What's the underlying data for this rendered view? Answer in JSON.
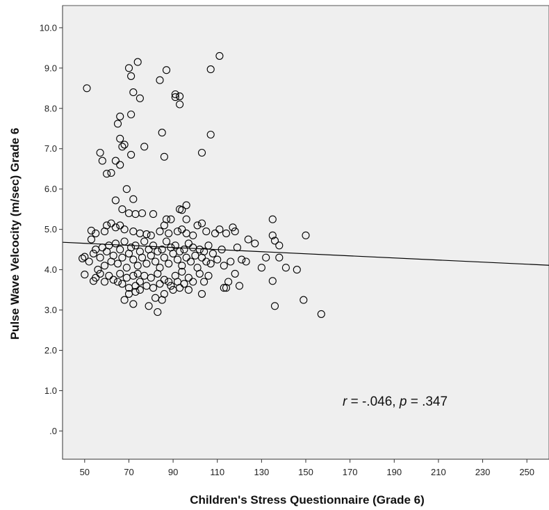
{
  "chart_data": {
    "type": "scatter",
    "title": "",
    "xlabel": "Children's Stress Questionnaire (Grade 6)",
    "ylabel": "Pulse Wave Velcocity (m/sec) Grade 6",
    "xlim": [
      40,
      260
    ],
    "ylim": [
      -0.7,
      10.55
    ],
    "xticks": [
      50,
      70,
      90,
      110,
      130,
      150,
      170,
      190,
      210,
      230,
      250
    ],
    "xtick_labels": [
      "50",
      "70",
      "90",
      "110",
      "130",
      "150",
      "170",
      "190",
      "210",
      "230",
      "250"
    ],
    "yticks": [
      0,
      1,
      2,
      3,
      4,
      5,
      6,
      7,
      8,
      9,
      10
    ],
    "ytick_labels": [
      ".0",
      "1.0",
      "2.0",
      "3.0",
      "4.0",
      "5.0",
      "6.0",
      "7.0",
      "8.0",
      "9.0",
      "10.0"
    ],
    "grid": false,
    "annotation": {
      "r_label": "r",
      "r_value": " = -.046, ",
      "p_label": "p",
      "p_value": " = .347"
    },
    "fit_line": {
      "x": [
        40,
        260
      ],
      "y": [
        4.68,
        4.11
      ]
    },
    "colors": {
      "plot_background": "#efefef",
      "marker_edge": "#000000",
      "fit_line": "#000000"
    },
    "points": [
      [
        51,
        8.5
      ],
      [
        70,
        9.0
      ],
      [
        74,
        9.15
      ],
      [
        87,
        8.95
      ],
      [
        107,
        8.97
      ],
      [
        111,
        9.3
      ],
      [
        71,
        8.8
      ],
      [
        72,
        8.4
      ],
      [
        75,
        8.25
      ],
      [
        84,
        8.7
      ],
      [
        91,
        8.35
      ],
      [
        91,
        8.28
      ],
      [
        93,
        8.3
      ],
      [
        93,
        8.1
      ],
      [
        66,
        7.8
      ],
      [
        71,
        7.85
      ],
      [
        65,
        7.62
      ],
      [
        85,
        7.4
      ],
      [
        107,
        7.35
      ],
      [
        57,
        6.9
      ],
      [
        58,
        6.7
      ],
      [
        66,
        7.25
      ],
      [
        67,
        7.05
      ],
      [
        68,
        7.1
      ],
      [
        71,
        6.85
      ],
      [
        77,
        7.05
      ],
      [
        86,
        6.8
      ],
      [
        103,
        6.9
      ],
      [
        64,
        6.7
      ],
      [
        66,
        6.6
      ],
      [
        60,
        6.38
      ],
      [
        62,
        6.4
      ],
      [
        69,
        6.0
      ],
      [
        64,
        5.72
      ],
      [
        72,
        5.75
      ],
      [
        96,
        5.6
      ],
      [
        93,
        5.5
      ],
      [
        94,
        5.48
      ],
      [
        67,
        5.5
      ],
      [
        70,
        5.4
      ],
      [
        73,
        5.38
      ],
      [
        81,
        5.38
      ],
      [
        76,
        5.4
      ],
      [
        87,
        5.25
      ],
      [
        89,
        5.25
      ],
      [
        96,
        5.25
      ],
      [
        135,
        5.25
      ],
      [
        53,
        4.97
      ],
      [
        55,
        4.9
      ],
      [
        59,
        4.95
      ],
      [
        60,
        5.1
      ],
      [
        62,
        5.15
      ],
      [
        64,
        5.05
      ],
      [
        66,
        5.1
      ],
      [
        68,
        5.0
      ],
      [
        72,
        4.95
      ],
      [
        75,
        4.9
      ],
      [
        78,
        4.88
      ],
      [
        80,
        4.85
      ],
      [
        84,
        4.95
      ],
      [
        86,
        5.1
      ],
      [
        88,
        4.9
      ],
      [
        92,
        4.95
      ],
      [
        94,
        5.0
      ],
      [
        96,
        4.9
      ],
      [
        99,
        4.85
      ],
      [
        101,
        5.1
      ],
      [
        103,
        5.15
      ],
      [
        105,
        4.95
      ],
      [
        109,
        4.9
      ],
      [
        111,
        5.0
      ],
      [
        114,
        4.9
      ],
      [
        117,
        5.05
      ],
      [
        118,
        4.95
      ],
      [
        124,
        4.75
      ],
      [
        127,
        4.65
      ],
      [
        135,
        4.85
      ],
      [
        136,
        4.72
      ],
      [
        138,
        4.6
      ],
      [
        150,
        4.85
      ],
      [
        49,
        4.28
      ],
      [
        50,
        4.32
      ],
      [
        52,
        4.2
      ],
      [
        53,
        4.75
      ],
      [
        54,
        4.4
      ],
      [
        55,
        4.5
      ],
      [
        56,
        4.0
      ],
      [
        57,
        4.3
      ],
      [
        58,
        4.55
      ],
      [
        59,
        4.1
      ],
      [
        60,
        4.45
      ],
      [
        61,
        4.6
      ],
      [
        62,
        4.2
      ],
      [
        63,
        4.35
      ],
      [
        64,
        4.65
      ],
      [
        65,
        4.15
      ],
      [
        66,
        4.5
      ],
      [
        67,
        4.3
      ],
      [
        68,
        4.7
      ],
      [
        69,
        4.05
      ],
      [
        70,
        4.4
      ],
      [
        71,
        4.55
      ],
      [
        72,
        4.25
      ],
      [
        73,
        4.6
      ],
      [
        74,
        4.1
      ],
      [
        75,
        4.45
      ],
      [
        76,
        4.3
      ],
      [
        77,
        4.7
      ],
      [
        78,
        4.15
      ],
      [
        79,
        4.5
      ],
      [
        80,
        4.35
      ],
      [
        81,
        4.6
      ],
      [
        82,
        4.2
      ],
      [
        83,
        4.45
      ],
      [
        84,
        4.05
      ],
      [
        85,
        4.5
      ],
      [
        86,
        4.3
      ],
      [
        87,
        4.7
      ],
      [
        88,
        4.15
      ],
      [
        89,
        4.55
      ],
      [
        90,
        4.4
      ],
      [
        91,
        4.6
      ],
      [
        92,
        4.25
      ],
      [
        93,
        4.45
      ],
      [
        94,
        4.1
      ],
      [
        95,
        4.5
      ],
      [
        96,
        4.3
      ],
      [
        97,
        4.65
      ],
      [
        98,
        4.2
      ],
      [
        99,
        4.55
      ],
      [
        100,
        4.35
      ],
      [
        101,
        4.05
      ],
      [
        102,
        4.5
      ],
      [
        103,
        4.3
      ],
      [
        104,
        4.45
      ],
      [
        105,
        4.2
      ],
      [
        106,
        4.6
      ],
      [
        107,
        4.15
      ],
      [
        108,
        4.4
      ],
      [
        110,
        4.25
      ],
      [
        112,
        4.5
      ],
      [
        113,
        4.1
      ],
      [
        116,
        4.2
      ],
      [
        119,
        4.55
      ],
      [
        121,
        4.25
      ],
      [
        123,
        4.2
      ],
      [
        130,
        4.05
      ],
      [
        132,
        4.3
      ],
      [
        138,
        4.3
      ],
      [
        141,
        4.05
      ],
      [
        146,
        4.0
      ],
      [
        50,
        3.88
      ],
      [
        54,
        3.72
      ],
      [
        55,
        3.8
      ],
      [
        57,
        3.9
      ],
      [
        59,
        3.7
      ],
      [
        61,
        3.85
      ],
      [
        63,
        3.75
      ],
      [
        65,
        3.7
      ],
      [
        66,
        3.9
      ],
      [
        67,
        3.65
      ],
      [
        69,
        3.8
      ],
      [
        70,
        3.55
      ],
      [
        72,
        3.85
      ],
      [
        73,
        3.6
      ],
      [
        74,
        3.9
      ],
      [
        75,
        3.7
      ],
      [
        77,
        3.85
      ],
      [
        78,
        3.6
      ],
      [
        80,
        3.8
      ],
      [
        81,
        3.55
      ],
      [
        83,
        3.9
      ],
      [
        84,
        3.65
      ],
      [
        86,
        3.75
      ],
      [
        88,
        3.7
      ],
      [
        89,
        3.6
      ],
      [
        91,
        3.85
      ],
      [
        92,
        3.7
      ],
      [
        94,
        3.95
      ],
      [
        95,
        3.65
      ],
      [
        97,
        3.8
      ],
      [
        99,
        3.7
      ],
      [
        102,
        3.9
      ],
      [
        104,
        3.7
      ],
      [
        106,
        3.85
      ],
      [
        114,
        3.55
      ],
      [
        115,
        3.7
      ],
      [
        118,
        3.9
      ],
      [
        120,
        3.6
      ],
      [
        135,
        3.72
      ],
      [
        68,
        3.25
      ],
      [
        70,
        3.4
      ],
      [
        72,
        3.15
      ],
      [
        73,
        3.45
      ],
      [
        75,
        3.5
      ],
      [
        79,
        3.1
      ],
      [
        82,
        3.3
      ],
      [
        83,
        2.95
      ],
      [
        85,
        3.25
      ],
      [
        86,
        3.4
      ],
      [
        90,
        3.5
      ],
      [
        93,
        3.55
      ],
      [
        97,
        3.5
      ],
      [
        103,
        3.4
      ],
      [
        113,
        3.55
      ],
      [
        136,
        3.1
      ],
      [
        149,
        3.25
      ],
      [
        157,
        2.9
      ]
    ]
  }
}
